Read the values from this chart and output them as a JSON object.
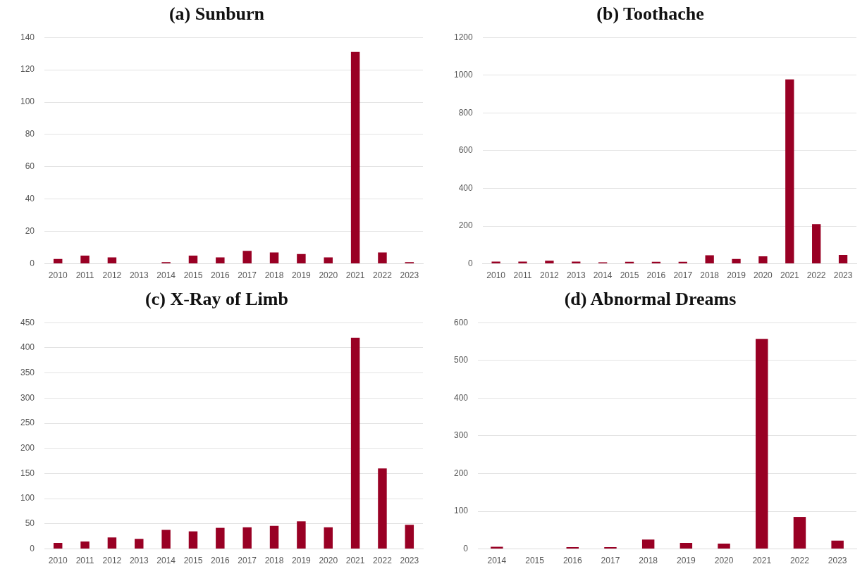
{
  "chart_data": [
    {
      "type": "bar",
      "title": "(a) Sunburn",
      "categories": [
        "2010",
        "2011",
        "2012",
        "2013",
        "2014",
        "2015",
        "2016",
        "2017",
        "2018",
        "2019",
        "2020",
        "2021",
        "2022",
        "2023"
      ],
      "values": [
        3,
        5,
        4,
        0,
        1,
        5,
        4,
        8,
        7,
        6,
        4,
        131,
        7,
        1
      ],
      "color": "#990024",
      "ylim": [
        0,
        140
      ],
      "yticks": [
        0,
        20,
        40,
        60,
        80,
        100,
        120,
        140
      ],
      "grid": "y"
    },
    {
      "type": "bar",
      "title": "(b) Toothache",
      "categories": [
        "2010",
        "2011",
        "2012",
        "2013",
        "2014",
        "2015",
        "2016",
        "2017",
        "2018",
        "2019",
        "2020",
        "2021",
        "2022",
        "2023"
      ],
      "values": [
        12,
        12,
        16,
        12,
        8,
        11,
        11,
        11,
        45,
        26,
        40,
        978,
        210,
        47
      ],
      "color": "#990024",
      "ylim": [
        0,
        1200
      ],
      "yticks": [
        0,
        200,
        400,
        600,
        800,
        1000,
        1200
      ],
      "grid": "y"
    },
    {
      "type": "bar",
      "title": "(c) X-Ray of Limb",
      "categories": [
        "2010",
        "2011",
        "2012",
        "2013",
        "2014",
        "2015",
        "2016",
        "2017",
        "2018",
        "2019",
        "2020",
        "2021",
        "2022",
        "2023"
      ],
      "values": [
        12,
        15,
        23,
        20,
        38,
        35,
        42,
        43,
        46,
        55,
        43,
        420,
        160,
        48
      ],
      "color": "#990024",
      "ylim": [
        0,
        450
      ],
      "yticks": [
        0,
        50,
        100,
        150,
        200,
        250,
        300,
        350,
        400,
        450
      ],
      "grid": "y"
    },
    {
      "type": "bar",
      "title": "(d) Abnormal Dreams",
      "categories": [
        "2014",
        "2015",
        "2016",
        "2017",
        "2018",
        "2019",
        "2020",
        "2021",
        "2022",
        "2023"
      ],
      "values": [
        6,
        0,
        5,
        5,
        25,
        16,
        14,
        557,
        85,
        22
      ],
      "color": "#990024",
      "ylim": [
        0,
        600
      ],
      "yticks": [
        0,
        100,
        200,
        300,
        400,
        500,
        600
      ],
      "grid": "y"
    }
  ]
}
